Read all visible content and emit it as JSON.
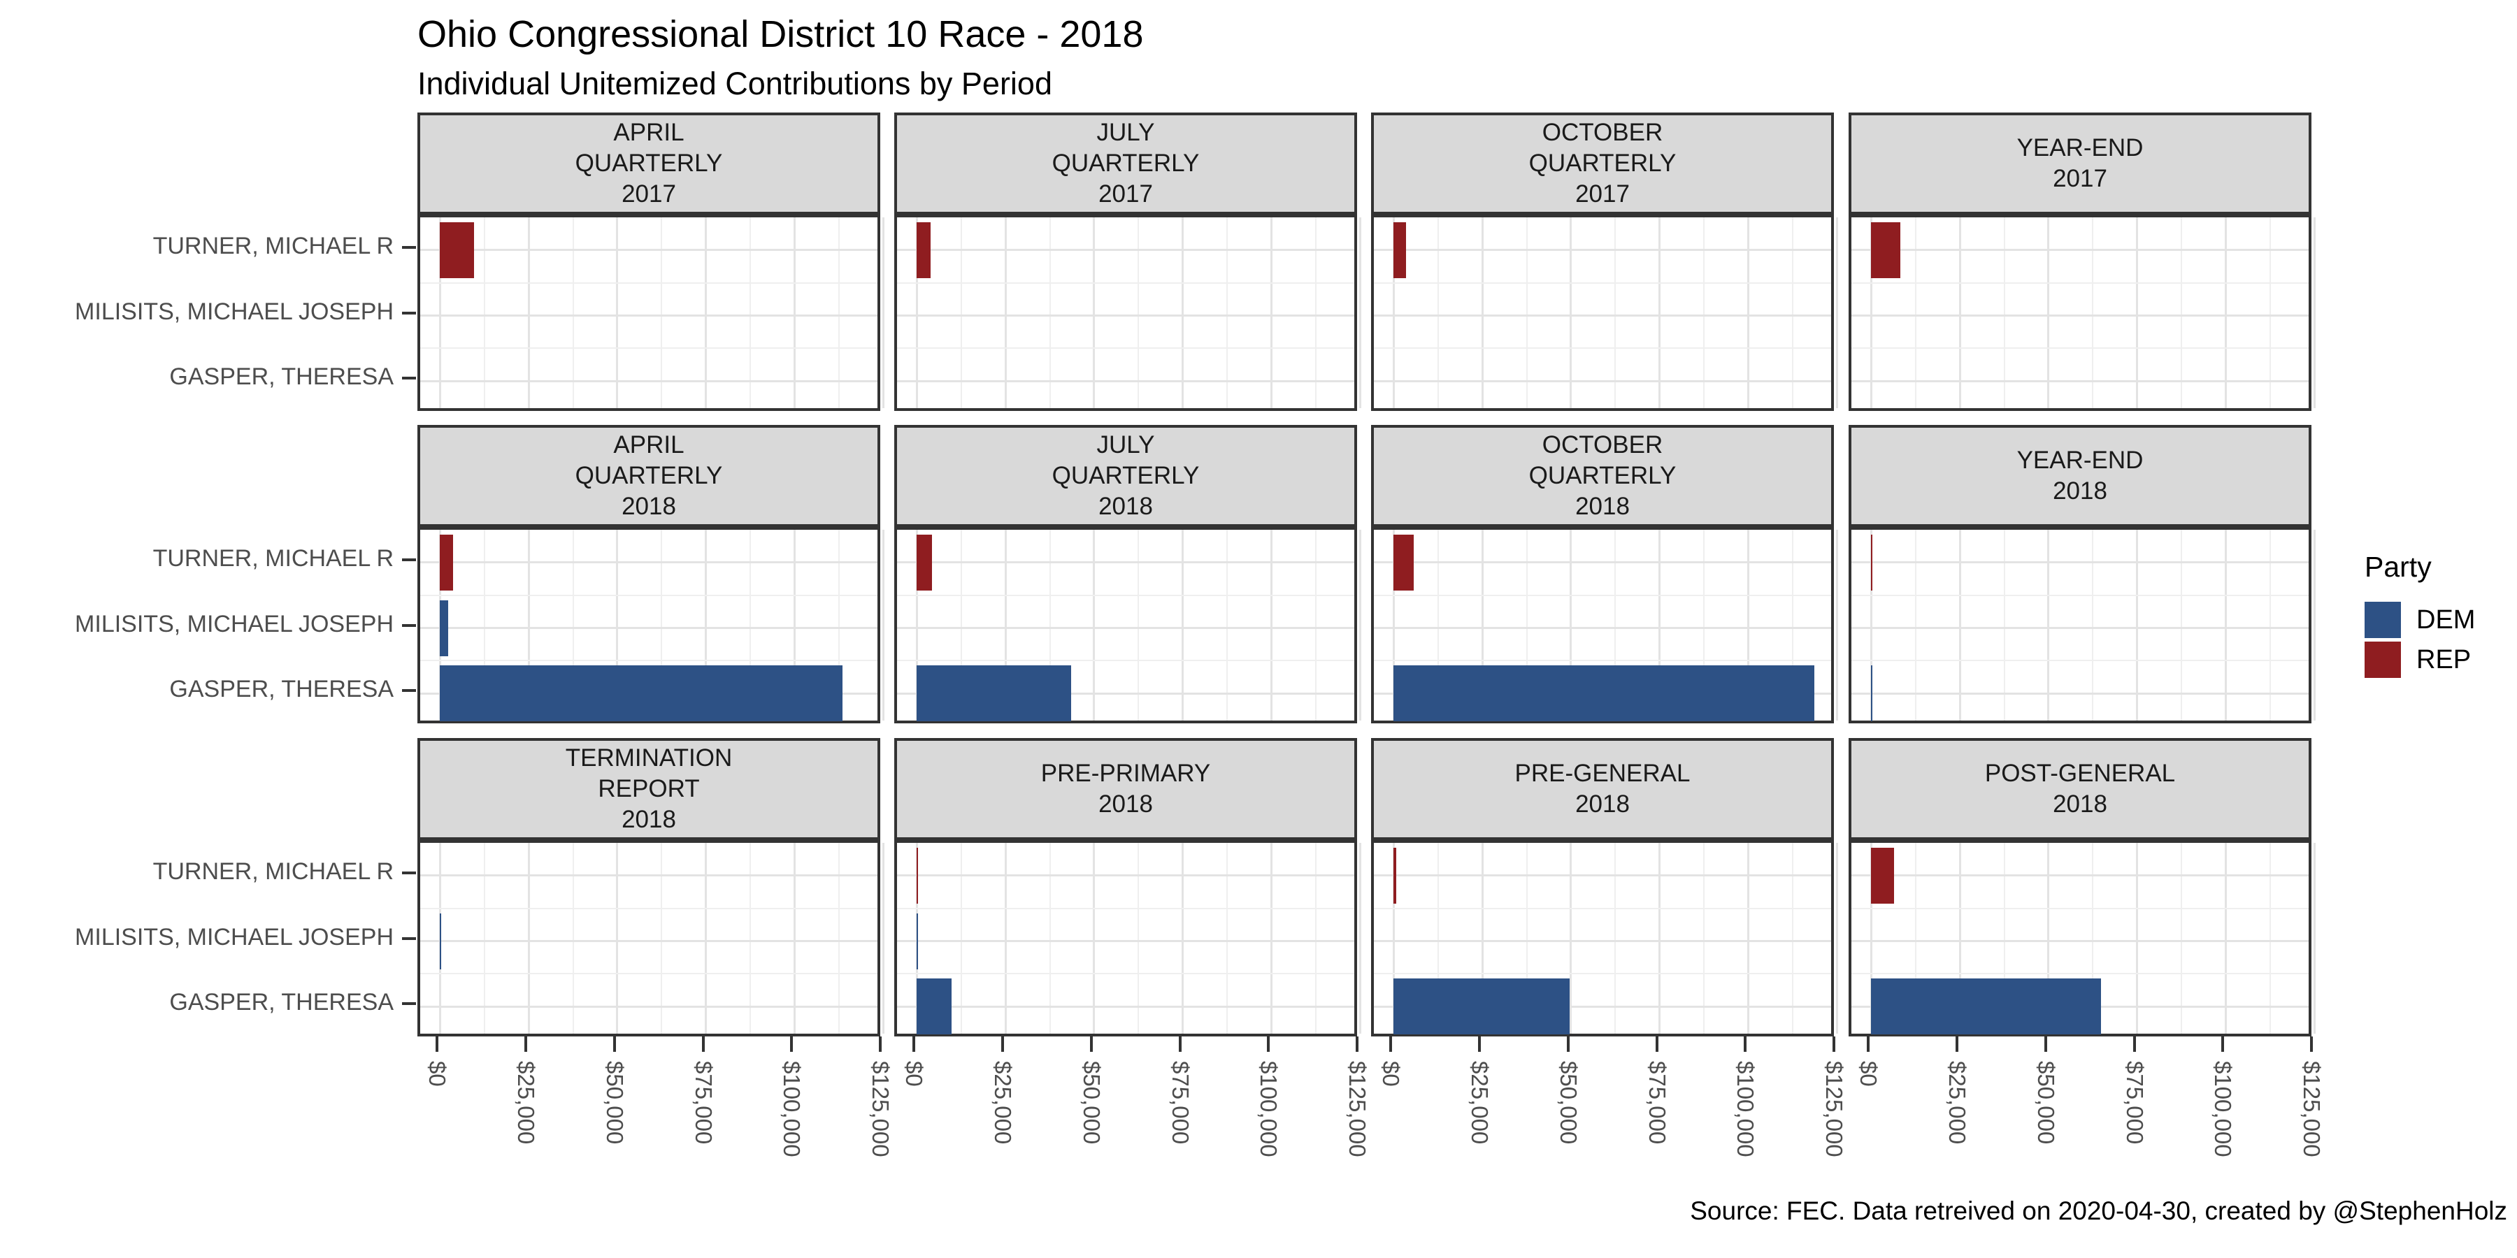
{
  "title": "Ohio Congressional District 10 Race - 2018",
  "subtitle": "Individual Unitemized Contributions by Period",
  "caption": "Source: FEC. Data retreived on 2020-04-30, created by @StephenHolz",
  "legend": {
    "title": "Party",
    "entries": [
      {
        "label": "DEM",
        "color": "#2d5185"
      },
      {
        "label": "REP",
        "color": "#8f1d20"
      }
    ]
  },
  "colors": {
    "dem": "#2d5185",
    "rep": "#8f1d20",
    "strip_bg": "#d9d9d9",
    "panel_border": "#333333",
    "grid_major": "#e3e3e3",
    "grid_minor": "#efefef",
    "axis_text": "#4d4d4d"
  },
  "chart_data": {
    "type": "bar",
    "orientation": "horizontal",
    "title": "Ohio Congressional District 10 Race - 2018",
    "subtitle": "Individual Unitemized Contributions by Period",
    "candidates": [
      "TURNER, MICHAEL R",
      "MILISITS, MICHAEL JOSEPH",
      "GASPER, THERESA"
    ],
    "candidate_parties": [
      "REP",
      "DEM",
      "DEM"
    ],
    "xlim": [
      0,
      125000
    ],
    "x_tick_values": [
      0,
      25000,
      50000,
      75000,
      100000,
      125000
    ],
    "x_tick_labels": [
      "$0",
      "$25,000",
      "$50,000",
      "$75,000",
      "$100,000",
      "$125,000"
    ],
    "minor_grid_step": 12500,
    "grid": true,
    "legend_position": "right",
    "facet_grid": {
      "rows": 3,
      "cols": 4
    },
    "facets": [
      {
        "label_lines": [
          "APRIL",
          "QUARTERLY",
          "2017"
        ],
        "values": [
          9650,
          0,
          0
        ]
      },
      {
        "label_lines": [
          "JULY",
          "QUARTERLY",
          "2017"
        ],
        "values": [
          3800,
          0,
          0
        ]
      },
      {
        "label_lines": [
          "OCTOBER",
          "QUARTERLY",
          "2017"
        ],
        "values": [
          3400,
          0,
          0
        ]
      },
      {
        "label_lines": [
          "YEAR-END",
          "2017"
        ],
        "values": [
          8100,
          0,
          0
        ]
      },
      {
        "label_lines": [
          "APRIL",
          "QUARTERLY",
          "2018"
        ],
        "values": [
          3700,
          2300,
          113600
        ]
      },
      {
        "label_lines": [
          "JULY",
          "QUARTERLY",
          "2018"
        ],
        "values": [
          4300,
          0,
          43600
        ]
      },
      {
        "label_lines": [
          "OCTOBER",
          "QUARTERLY",
          "2018"
        ],
        "values": [
          5700,
          0,
          118600
        ]
      },
      {
        "label_lines": [
          "YEAR-END",
          "2018"
        ],
        "values": [
          200,
          0,
          400
        ]
      },
      {
        "label_lines": [
          "TERMINATION",
          "REPORT",
          "2018"
        ],
        "values": [
          0,
          250,
          0
        ]
      },
      {
        "label_lines": [
          "PRE-PRIMARY",
          "2018"
        ],
        "values": [
          330,
          150,
          9700
        ]
      },
      {
        "label_lines": [
          "PRE-GENERAL",
          "2018"
        ],
        "values": [
          700,
          0,
          49600
        ]
      },
      {
        "label_lines": [
          "POST-GENERAL",
          "2018"
        ],
        "values": [
          6400,
          0,
          64800
        ]
      }
    ]
  }
}
